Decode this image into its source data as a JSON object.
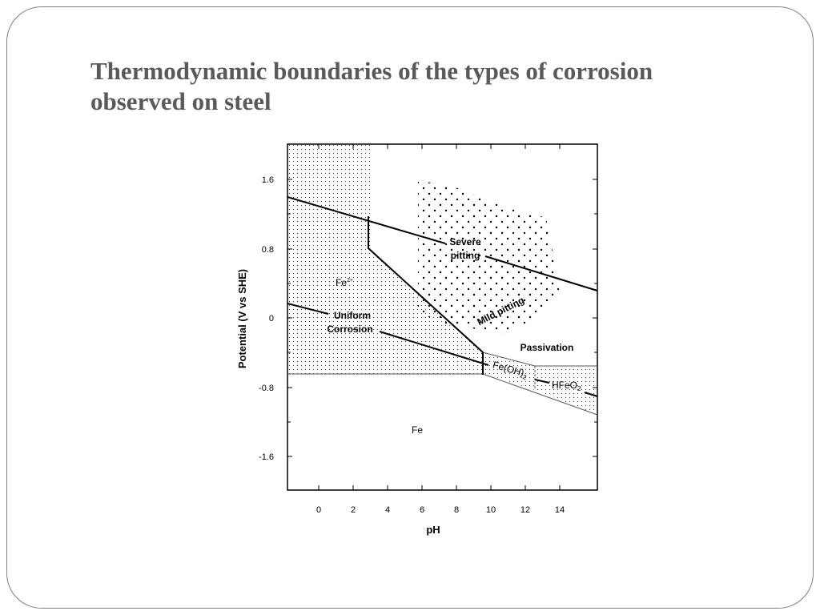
{
  "slide": {
    "title_line1": "Thermodynamic boundaries of the types of corrosion",
    "title_line2": "observed on steel"
  },
  "diagram": {
    "y_axis_title": "Potential (V vs SHE)",
    "x_axis_title": "pH",
    "y_ticks": [
      "1.6",
      "0.8",
      "0",
      "-0.8",
      "-1.6"
    ],
    "x_ticks": [
      "0",
      "2",
      "4",
      "6",
      "8",
      "10",
      "12",
      "14"
    ],
    "regions": {
      "fe2": "Fe",
      "fe2_charge": "2+",
      "uniform_line1": "Uniform",
      "uniform_line2": "Corrosion",
      "severe_line1": "Severe",
      "severe_line2": "pitting",
      "mild": "Mild pitting",
      "passivation": "Passivation",
      "feoh2_base": "Fe(OH)",
      "feoh2_sub": "2",
      "hfeo2_base": "HFeO",
      "hfeo2_sub": "2",
      "fe": "Fe"
    }
  }
}
